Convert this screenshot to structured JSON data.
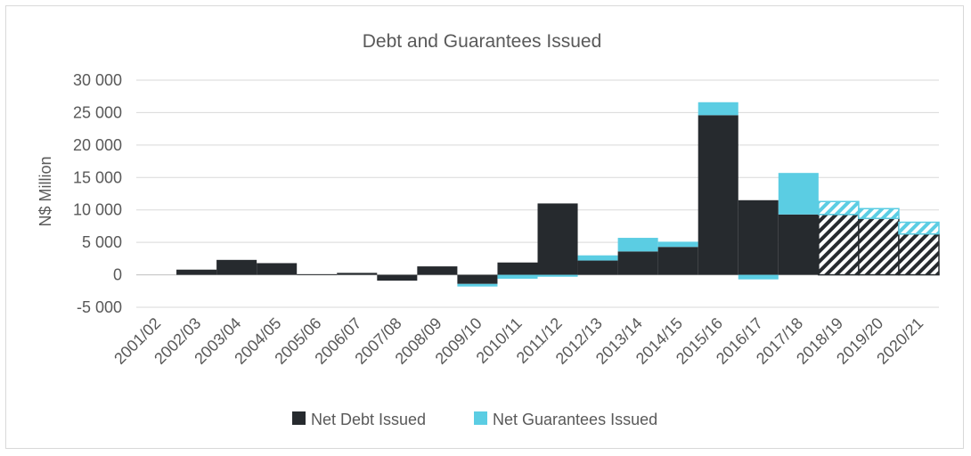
{
  "chart_data": {
    "type": "bar",
    "stacked": true,
    "title": "Debt and Guarantees Issued",
    "xlabel": "",
    "ylabel": "N$ Million",
    "ylim": [
      -5000,
      30000
    ],
    "yticks": [
      30000,
      25000,
      20000,
      15000,
      10000,
      5000,
      0,
      -5000
    ],
    "ytick_labels": [
      "30 000",
      "25 000",
      "20 000",
      "15 000",
      "10 000",
      "5 000",
      "0",
      "-5 000"
    ],
    "grid": true,
    "legend_position": "bottom",
    "categories": [
      "2001/02",
      "2002/03",
      "2003/04",
      "2004/05",
      "2005/06",
      "2006/07",
      "2007/08",
      "2008/09",
      "2009/10",
      "2010/11",
      "2011/12",
      "2012/13",
      "2013/14",
      "2014/15",
      "2015/16",
      "2016/17",
      "2017/18",
      "2018/19",
      "2019/20",
      "2020/21"
    ],
    "projected_categories": [
      "2018/19",
      "2019/20",
      "2020/21"
    ],
    "series": [
      {
        "name": "Net Debt Issued",
        "color": "#262a2e",
        "values": [
          0,
          800,
          2300,
          1800,
          100,
          300,
          -900,
          1300,
          -1400,
          1900,
          11000,
          2200,
          3600,
          4300,
          24600,
          11500,
          9300,
          9300,
          8700,
          6300
        ]
      },
      {
        "name": "Net Guarantees Issued",
        "color": "#5bcde3",
        "values": [
          0,
          0,
          0,
          0,
          0,
          0,
          0,
          0,
          -400,
          -600,
          -300,
          800,
          2100,
          800,
          2000,
          -700,
          6400,
          2000,
          1500,
          1800
        ]
      }
    ]
  }
}
